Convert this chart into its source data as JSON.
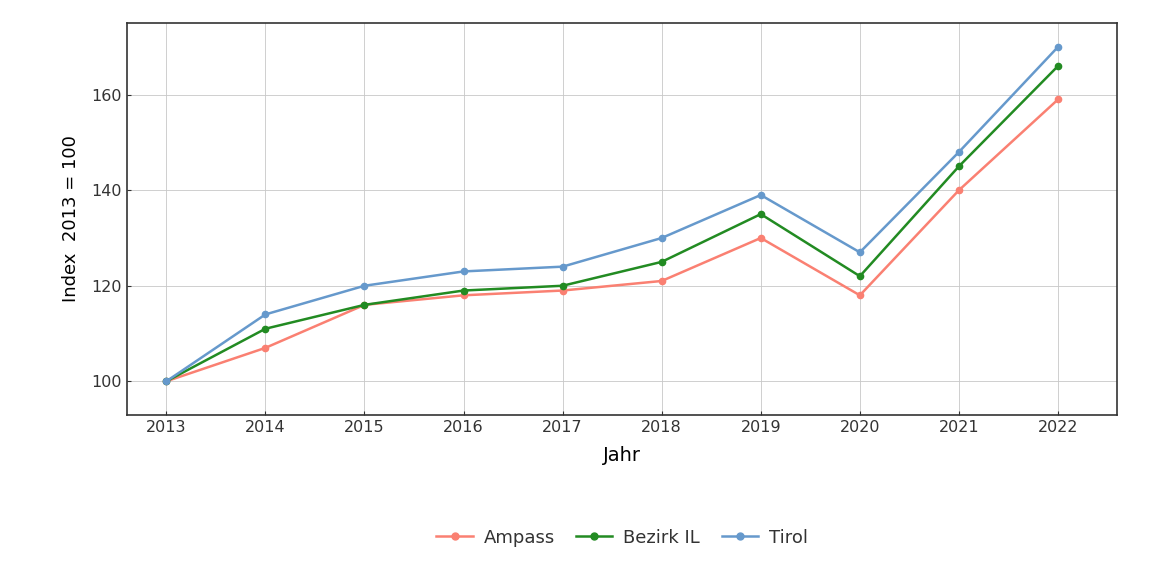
{
  "years": [
    2013,
    2014,
    2015,
    2016,
    2017,
    2018,
    2019,
    2020,
    2021,
    2022
  ],
  "ampass": [
    100,
    107,
    116,
    118,
    119,
    121,
    130,
    118,
    140,
    159
  ],
  "bezirk_il": [
    100,
    111,
    116,
    119,
    120,
    125,
    135,
    122,
    145,
    166
  ],
  "tirol": [
    100,
    114,
    120,
    123,
    124,
    130,
    139,
    127,
    148,
    170
  ],
  "colors": {
    "ampass": "#FA8072",
    "bezirk_il": "#228B22",
    "tirol": "#6699CC"
  },
  "xlabel": "Jahr",
  "ylabel": "Index  2013 = 100",
  "ylim": [
    93,
    175
  ],
  "yticks": [
    100,
    120,
    140,
    160
  ],
  "xlim": [
    2012.6,
    2022.6
  ],
  "legend_labels": [
    "Ampass",
    "Bezirk IL",
    "Tirol"
  ],
  "background_color": "#ffffff",
  "grid_color": "#c8c8c8",
  "spine_color": "#333333"
}
